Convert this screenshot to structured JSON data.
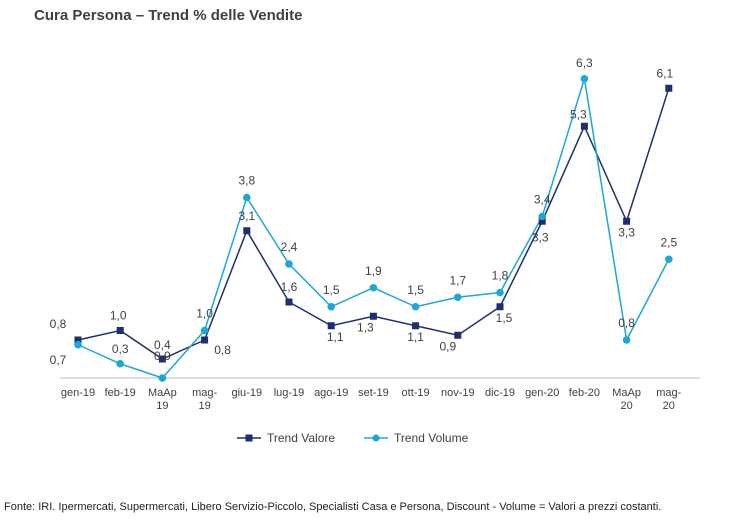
{
  "title": "Cura Persona –  Trend % delle Vendite",
  "footer": "Fonte: IRI. Ipermercati, Supermercati, Libero Servizio-Piccolo, Specialisti Casa e Persona, Discount -  Volume =  Valori a prezzi costanti.",
  "chart_data": {
    "type": "line",
    "title": "Cura Persona –  Trend % delle Vendite",
    "xlabel": "",
    "ylabel": "",
    "categories": [
      "gen-19",
      "feb-19",
      "MaAp 19",
      "mag-19",
      "giu-19",
      "lug-19",
      "ago-19",
      "set-19",
      "ott-19",
      "nov-19",
      "dic-19",
      "gen-20",
      "feb-20",
      "MaAp 20",
      "mag-20"
    ],
    "category_lines": [
      [
        "gen-19"
      ],
      [
        "feb-19"
      ],
      [
        "MaAp",
        "19"
      ],
      [
        "mag-",
        "19"
      ],
      [
        "giu-19"
      ],
      [
        "lug-19"
      ],
      [
        "ago-19"
      ],
      [
        "set-19"
      ],
      [
        "ott-19"
      ],
      [
        "nov-19"
      ],
      [
        "dic-19"
      ],
      [
        "gen-20"
      ],
      [
        "feb-20"
      ],
      [
        "MaAp",
        "20"
      ],
      [
        "mag-",
        "20"
      ]
    ],
    "ylim": [
      0,
      6.5
    ],
    "grid": false,
    "legend": "bottom",
    "series": [
      {
        "name": "Trend Valore",
        "color": "#1f2f6e",
        "marker": "square",
        "values": [
          0.8,
          1.0,
          0.4,
          0.8,
          3.1,
          1.6,
          1.1,
          1.3,
          1.1,
          0.9,
          1.5,
          3.3,
          5.3,
          3.3,
          6.1
        ],
        "labels": [
          "0,8",
          "1,0",
          "0,4",
          "0,8",
          "3,1",
          "1,6",
          "1,1",
          "1,3",
          "1,1",
          "0,9",
          "1,5",
          "3,3",
          "5,3",
          "3,3",
          "6,1"
        ]
      },
      {
        "name": "Trend Volume",
        "color": "#1ba8d8",
        "marker": "circle",
        "values": [
          0.7,
          0.3,
          0.0,
          1.0,
          3.8,
          2.4,
          1.5,
          1.9,
          1.5,
          1.7,
          1.8,
          3.4,
          6.3,
          0.8,
          2.5
        ],
        "labels": [
          "0,7",
          "0,3",
          "0,0",
          "1,0",
          "3,8",
          "2,4",
          "1,5",
          "1,9",
          "1,5",
          "1,7",
          "1,8",
          "3,4",
          "6,3",
          "0,8",
          "2,5"
        ]
      }
    ]
  }
}
